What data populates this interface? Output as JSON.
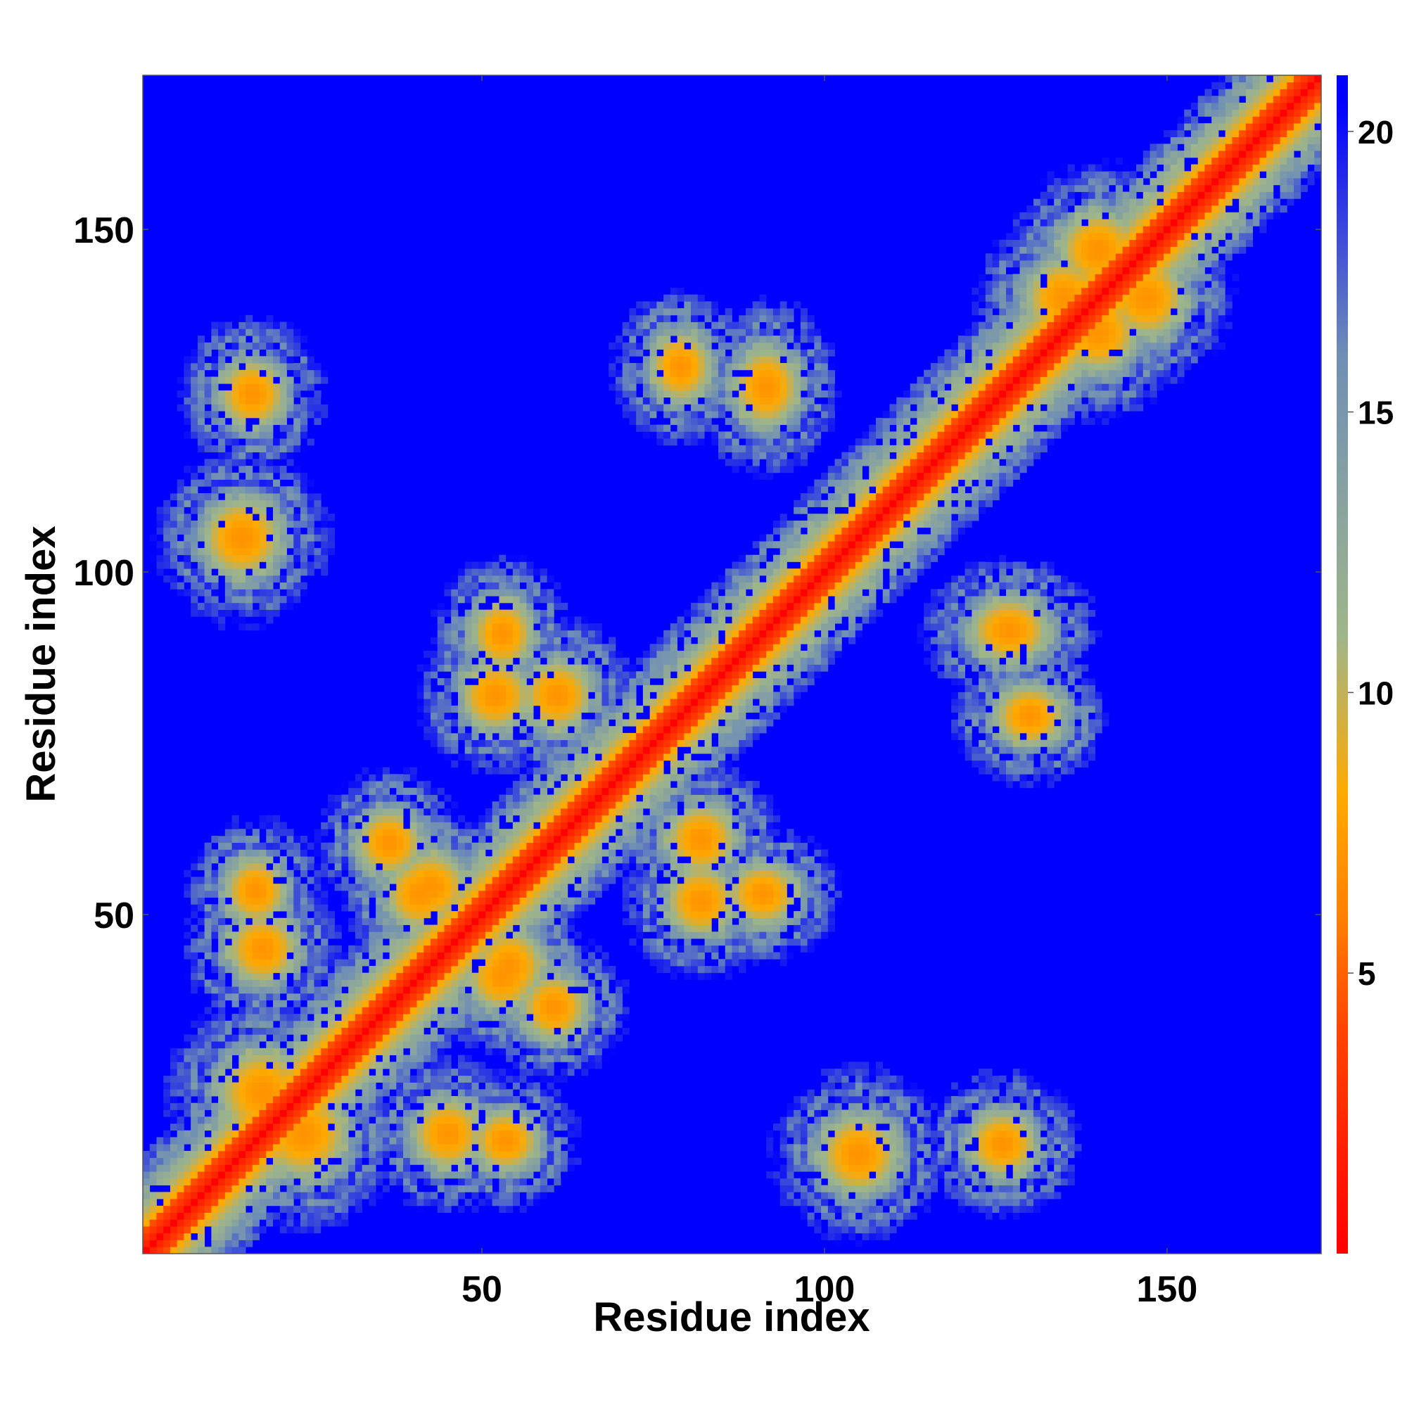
{
  "chart_data": {
    "type": "heatmap",
    "title": "",
    "xlabel": "Residue index",
    "ylabel": "Residue index",
    "xlim": [
      1,
      172
    ],
    "ylim": [
      1,
      172
    ],
    "x_ticks": [
      50,
      100,
      150
    ],
    "y_ticks": [
      50,
      100,
      150
    ],
    "x_tick_labels": [
      "50",
      "100",
      "150"
    ],
    "y_tick_labels": [
      "50",
      "100",
      "150"
    ],
    "n_residues": 172,
    "value_description": "pairwise residue distance map; diagonal = 0, values clipped at ~21",
    "colorbar": {
      "range": [
        0,
        21
      ],
      "ticks": [
        5,
        10,
        15,
        20
      ],
      "tick_labels": [
        "5",
        "10",
        "15",
        "20"
      ],
      "position": "right",
      "colors": [
        "#ff0000",
        "#ff4400",
        "#ff8000",
        "#ffaa00",
        "#9fb58a",
        "#6f8fb5",
        "#0000ff"
      ],
      "color_stops": [
        0,
        4,
        6,
        8.2,
        11,
        16,
        20.5
      ]
    },
    "diagonal_value": 0,
    "background_value": 21,
    "contact_regions": [
      {
        "i": [
          18,
          30
        ],
        "j": [
          12,
          24
        ],
        "value": 7
      },
      {
        "i": [
          33,
          40
        ],
        "j": [
          57,
          64
        ],
        "value": 7
      },
      {
        "i": [
          37,
          45
        ],
        "j": [
          49,
          57
        ],
        "value": 7
      },
      {
        "i": [
          38,
          47
        ],
        "j": [
          50,
          58
        ],
        "value": 7
      },
      {
        "i": [
          14,
          22
        ],
        "j": [
          41,
          49
        ],
        "value": 7
      },
      {
        "i": [
          50,
          57
        ],
        "j": [
          14,
          20
        ],
        "value": 7
      },
      {
        "i": [
          50,
          56
        ],
        "j": [
          87,
          95
        ],
        "value": 7
      },
      {
        "i": [
          78,
          86
        ],
        "j": [
          48,
          56
        ],
        "value": 7
      },
      {
        "i": [
          78,
          86
        ],
        "j": [
          57,
          65
        ],
        "value": 7
      },
      {
        "i": [
          10,
          20
        ],
        "j": [
          100,
          110
        ],
        "value": 7
      },
      {
        "i": [
          122,
          130
        ],
        "j": [
          13,
          20
        ],
        "value": 7
      },
      {
        "i": [
          126,
          134
        ],
        "j": [
          76,
          82
        ],
        "value": 7
      },
      {
        "i": [
          88,
          95
        ],
        "j": [
          122,
          132
        ],
        "value": 7
      },
      {
        "i": [
          130,
          140
        ],
        "j": [
          135,
          145
        ],
        "value": 7
      },
      {
        "i": [
          142,
          152
        ],
        "j": [
          135,
          145
        ],
        "value": 7
      }
    ]
  }
}
